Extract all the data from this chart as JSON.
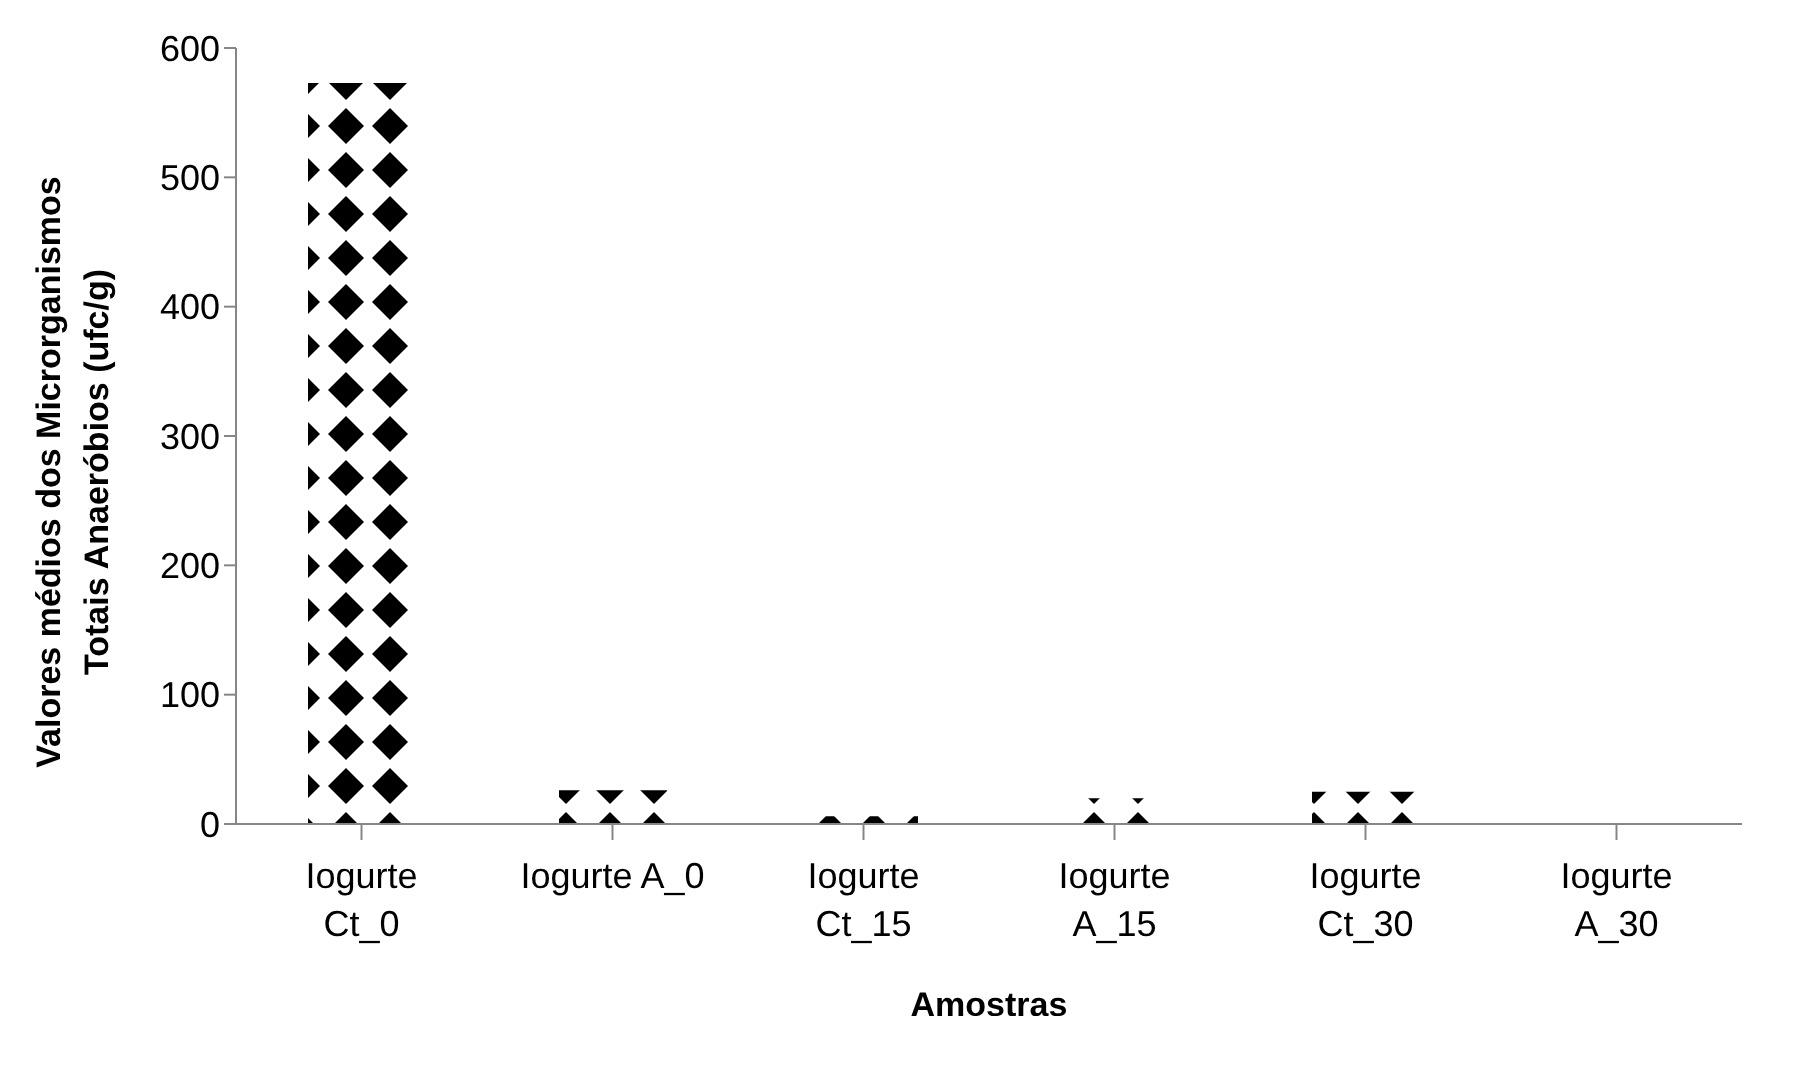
{
  "chart_data": {
    "type": "bar",
    "xlabel": "Amostras",
    "ylabel": "Valores médios dos Microrganismos\nTotais Anaeróbios (ufc/g)",
    "categories": [
      "Iogurte\nCt_0",
      "Iogurte A_0",
      "Iogurte\nCt_15",
      "Iogurte\nA_15",
      "Iogurte\nCt_30",
      "Iogurte\nA_30"
    ],
    "values": [
      573,
      26,
      6,
      20,
      25,
      0
    ],
    "color": "#000000",
    "ylim": [
      0,
      600
    ],
    "yticks": [
      0,
      100,
      200,
      300,
      400,
      500,
      600
    ],
    "grid": false,
    "legend": false
  }
}
